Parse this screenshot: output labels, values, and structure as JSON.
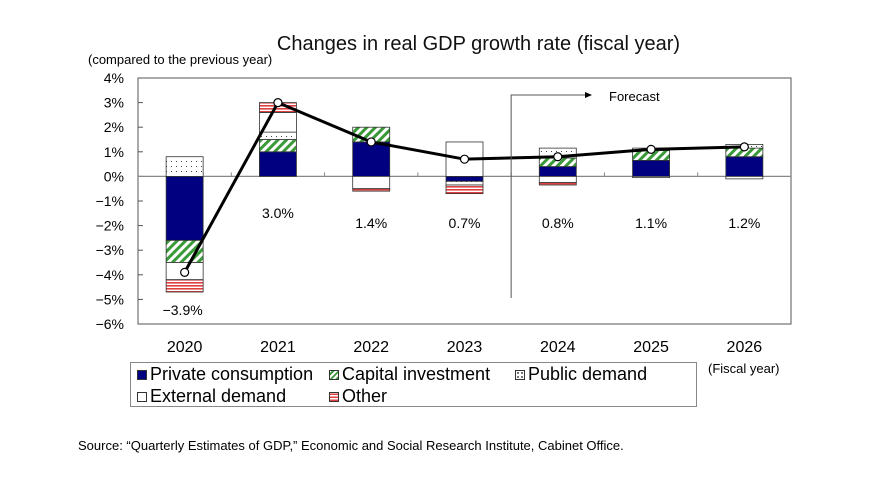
{
  "chart_data": {
    "type": "bar",
    "stacked": true,
    "title": "Changes in real GDP growth rate (fiscal year)",
    "ylabel": "(compared to the previous year)",
    "xlabel": "(Fiscal year)",
    "ylim": [
      -6,
      4
    ],
    "yticks": [
      "4%",
      "3%",
      "2%",
      "1%",
      "0%",
      "−1%",
      "−2%",
      "−3%",
      "−4%",
      "−5%",
      "−6%"
    ],
    "ytick_values": [
      4,
      3,
      2,
      1,
      0,
      -1,
      -2,
      -3,
      -4,
      -5,
      -6
    ],
    "categories": [
      "2020",
      "2021",
      "2022",
      "2023",
      "2024",
      "2025",
      "2026"
    ],
    "series": [
      {
        "name": "Private consumption",
        "color": "#000080",
        "values": [
          -2.6,
          1.0,
          1.4,
          -0.2,
          0.4,
          0.65,
          0.8
        ]
      },
      {
        "name": "Capital investment",
        "color": "#3a9a3a",
        "values": [
          -0.9,
          0.5,
          0.6,
          0.0,
          0.35,
          0.4,
          0.35
        ]
      },
      {
        "name": "Public demand",
        "color": "#ffffff",
        "values": [
          0.8,
          0.3,
          0.0,
          -0.15,
          0.4,
          0.1,
          0.15
        ]
      },
      {
        "name": "External demand",
        "color": "#ffffff",
        "values": [
          -0.7,
          0.8,
          -0.5,
          1.4,
          -0.25,
          -0.05,
          -0.1
        ]
      },
      {
        "name": "Other",
        "color": "#e04040",
        "values": [
          -0.5,
          0.4,
          -0.1,
          -0.35,
          -0.1,
          0.0,
          0.0
        ]
      }
    ],
    "line": {
      "name": "Real GDP growth",
      "values": [
        -3.9,
        3.0,
        1.4,
        0.7,
        0.8,
        1.1,
        1.2
      ]
    },
    "data_labels": [
      "−3.9%",
      "3.0%",
      "1.4%",
      "0.7%",
      "0.8%",
      "1.1%",
      "1.2%"
    ],
    "annotation": "Forecast",
    "forecast_from": "2024",
    "legend_position": "bottom",
    "grid": false
  },
  "source": "Source: “Quarterly Estimates of GDP,” Economic and Social Research Institute, Cabinet Office."
}
